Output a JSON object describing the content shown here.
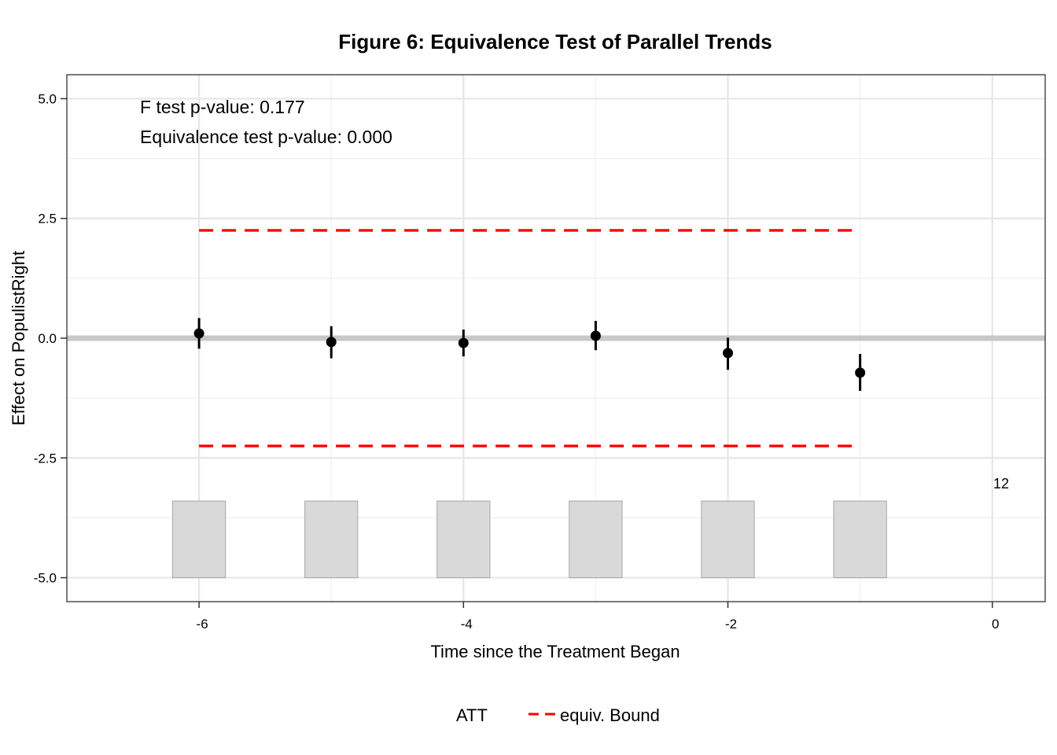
{
  "chart_data": {
    "type": "scatter",
    "title": "Figure 6: Equivalence Test of Parallel Trends",
    "xlabel": "Time since the Treatment Began",
    "ylabel": "Effect on PopulistRight",
    "xlim": [
      -7,
      0.4
    ],
    "ylim": [
      -5.5,
      5.5
    ],
    "x_ticks": [
      -6,
      -4,
      -2,
      0
    ],
    "x_tick_labels": [
      "-6",
      "-4",
      "-2",
      "0"
    ],
    "y_ticks": [
      -5,
      -2.5,
      0,
      2.5,
      5
    ],
    "y_tick_labels": [
      "-5.0",
      "-2.5",
      "0.0",
      "2.5",
      "5.0"
    ],
    "grid": true,
    "annotations": [
      "F test p-value: 0.177",
      "Equivalence test p-value: 0.000"
    ],
    "series": [
      {
        "name": "ATT",
        "x": [
          -6,
          -5,
          -4,
          -3,
          -2,
          -1
        ],
        "y": [
          0.1,
          -0.08,
          -0.1,
          0.05,
          -0.31,
          -0.72
        ],
        "ci_lower": [
          -0.22,
          -0.42,
          -0.38,
          -0.25,
          -0.66,
          -1.1
        ],
        "ci_upper": [
          0.42,
          0.25,
          0.18,
          0.36,
          0.01,
          -0.33
        ],
        "color": "#000000"
      },
      {
        "name": "equiv. Bound",
        "x": [
          -6,
          -1
        ],
        "upper": 2.25,
        "lower": -2.25,
        "color": "#ff0000",
        "style": "dashed"
      }
    ],
    "count_bars": {
      "x": [
        -6,
        -5,
        -4,
        -3,
        -2,
        -1
      ],
      "bottom": -5,
      "top": -3.4,
      "fill": "#d9d9d9"
    },
    "count_label": {
      "x": 0,
      "y": -3.05,
      "text": "12"
    },
    "legend_placement": "bottom",
    "legend": [
      {
        "label": "ATT",
        "key": "none"
      },
      {
        "label": "equiv. Bound",
        "key": "red-dashed"
      }
    ]
  }
}
